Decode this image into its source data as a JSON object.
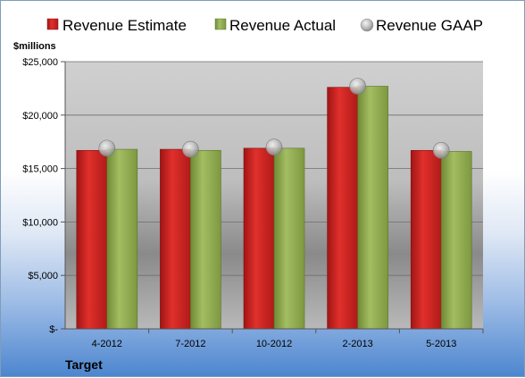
{
  "chart_data": {
    "type": "bar",
    "company": "Target",
    "unit_label": "$millions",
    "categories": [
      "4-2012",
      "7-2012",
      "10-2012",
      "2-2013",
      "5-2013"
    ],
    "series": [
      {
        "name": "Revenue Estimate",
        "kind": "bar",
        "color": "#c8201e",
        "values": [
          16700,
          16800,
          16900,
          22600,
          16700
        ]
      },
      {
        "name": "Revenue Actual",
        "kind": "bar",
        "color": "#8ea94e",
        "values": [
          16800,
          16700,
          16900,
          22700,
          16600
        ]
      },
      {
        "name": "Revenue GAAP",
        "kind": "marker",
        "color": "#b4b4b4",
        "values": [
          16900,
          16800,
          17000,
          22700,
          16700
        ]
      }
    ],
    "ylim": [
      0,
      25000
    ],
    "yticks": [
      0,
      5000,
      10000,
      15000,
      20000,
      25000
    ],
    "ytick_labels": [
      "$-",
      "$5,000",
      "$10,000",
      "$15,000",
      "$20,000",
      "$25,000"
    ],
    "grid": true,
    "legend_position": "top"
  }
}
